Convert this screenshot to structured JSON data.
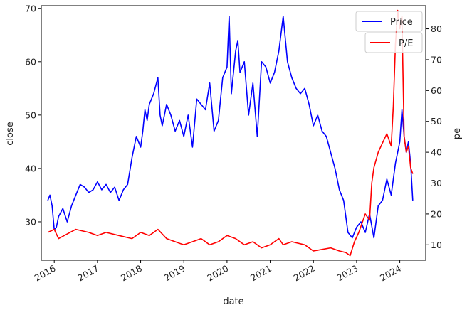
{
  "chart_data": {
    "type": "line",
    "xlabel": "date",
    "ylabel_left": "close",
    "ylabel_right": "pe",
    "x_ticks": [
      "2016",
      "2017",
      "2018",
      "2019",
      "2020",
      "2021",
      "2022",
      "2023",
      "2024"
    ],
    "y_left_ticks": [
      30,
      40,
      50,
      60,
      70
    ],
    "y_right_ticks": [
      10,
      20,
      30,
      40,
      50,
      60,
      70,
      80
    ],
    "xlim": [
      2015.7,
      2024.6
    ],
    "ylim_left": [
      22.8,
      70.5
    ],
    "ylim_right": [
      5.0,
      87.5
    ],
    "grid": false,
    "legend_placement": "top-right",
    "series": [
      {
        "name": "Price",
        "axis": "left",
        "color": "#0000ff",
        "x": [
          2015.85,
          2015.9,
          2015.95,
          2016.0,
          2016.05,
          2016.1,
          2016.2,
          2016.3,
          2016.4,
          2016.5,
          2016.6,
          2016.7,
          2016.8,
          2016.9,
          2017.0,
          2017.1,
          2017.2,
          2017.3,
          2017.4,
          2017.5,
          2017.6,
          2017.7,
          2017.8,
          2017.9,
          2018.0,
          2018.05,
          2018.1,
          2018.15,
          2018.2,
          2018.3,
          2018.4,
          2018.45,
          2018.5,
          2018.6,
          2018.7,
          2018.8,
          2018.9,
          2019.0,
          2019.1,
          2019.2,
          2019.3,
          2019.4,
          2019.5,
          2019.6,
          2019.7,
          2019.8,
          2019.9,
          2020.0,
          2020.05,
          2020.1,
          2020.2,
          2020.25,
          2020.3,
          2020.4,
          2020.5,
          2020.6,
          2020.7,
          2020.8,
          2020.9,
          2021.0,
          2021.1,
          2021.2,
          2021.3,
          2021.4,
          2021.5,
          2021.6,
          2021.7,
          2021.8,
          2021.9,
          2022.0,
          2022.1,
          2022.2,
          2022.3,
          2022.4,
          2022.5,
          2022.6,
          2022.7,
          2022.8,
          2022.9,
          2023.0,
          2023.1,
          2023.2,
          2023.3,
          2023.4,
          2023.5,
          2023.6,
          2023.7,
          2023.8,
          2023.9,
          2024.0,
          2024.05,
          2024.1,
          2024.15,
          2024.2,
          2024.25,
          2024.3
        ],
        "values": [
          34.0,
          35.0,
          33.0,
          28.5,
          29.0,
          31.0,
          32.5,
          30.0,
          33.0,
          35.0,
          37.0,
          36.5,
          35.5,
          36.0,
          37.5,
          36.0,
          37.0,
          35.5,
          36.5,
          34.0,
          36.0,
          37.0,
          42.0,
          46.0,
          44.0,
          47.0,
          51.0,
          49.0,
          52.0,
          54.0,
          57.0,
          50.0,
          48.0,
          52.0,
          50.0,
          47.0,
          49.0,
          46.0,
          50.0,
          44.0,
          53.0,
          52.0,
          51.0,
          56.0,
          47.0,
          49.0,
          57.0,
          59.0,
          68.5,
          54.0,
          62.0,
          64.0,
          58.0,
          60.0,
          50.0,
          56.0,
          46.0,
          60.0,
          59.0,
          56.0,
          58.0,
          62.0,
          68.5,
          60.0,
          57.0,
          55.0,
          54.0,
          55.0,
          52.0,
          48.0,
          50.0,
          47.0,
          46.0,
          43.0,
          40.0,
          36.0,
          34.0,
          28.0,
          27.0,
          29.0,
          30.0,
          28.0,
          31.5,
          27.0,
          33.0,
          34.0,
          38.0,
          35.0,
          41.0,
          45.0,
          51.0,
          46.0,
          43.0,
          45.0,
          41.0,
          34.0
        ]
      },
      {
        "name": "P/E",
        "axis": "right",
        "color": "#ff0000",
        "x": [
          2015.85,
          2016.0,
          2016.1,
          2016.3,
          2016.5,
          2016.8,
          2017.0,
          2017.2,
          2017.5,
          2017.8,
          2018.0,
          2018.2,
          2018.4,
          2018.6,
          2018.8,
          2019.0,
          2019.2,
          2019.4,
          2019.6,
          2019.8,
          2020.0,
          2020.2,
          2020.4,
          2020.6,
          2020.8,
          2021.0,
          2021.2,
          2021.3,
          2021.5,
          2021.8,
          2022.0,
          2022.2,
          2022.4,
          2022.6,
          2022.75,
          2022.85,
          2022.95,
          2023.05,
          2023.1,
          2023.2,
          2023.3,
          2023.35,
          2023.4,
          2023.5,
          2023.6,
          2023.7,
          2023.8,
          2023.85,
          2023.9,
          2023.95,
          2024.0,
          2024.05,
          2024.1,
          2024.15,
          2024.2,
          2024.25,
          2024.3
        ],
        "values": [
          14.0,
          15.0,
          12.0,
          13.5,
          15.0,
          14.0,
          13.0,
          14.0,
          13.0,
          12.0,
          14.0,
          13.0,
          15.0,
          12.0,
          11.0,
          10.0,
          11.0,
          12.0,
          10.0,
          11.0,
          13.0,
          12.0,
          10.0,
          11.0,
          9.0,
          10.0,
          12.0,
          10.0,
          11.0,
          10.0,
          8.0,
          8.5,
          9.0,
          8.0,
          7.5,
          6.5,
          11.0,
          14.0,
          16.0,
          20.0,
          18.0,
          30.0,
          35.0,
          40.0,
          43.0,
          46.0,
          42.0,
          55.0,
          75.0,
          86.0,
          80.0,
          84.0,
          45.0,
          40.0,
          42.0,
          35.0,
          33.0
        ]
      }
    ]
  }
}
